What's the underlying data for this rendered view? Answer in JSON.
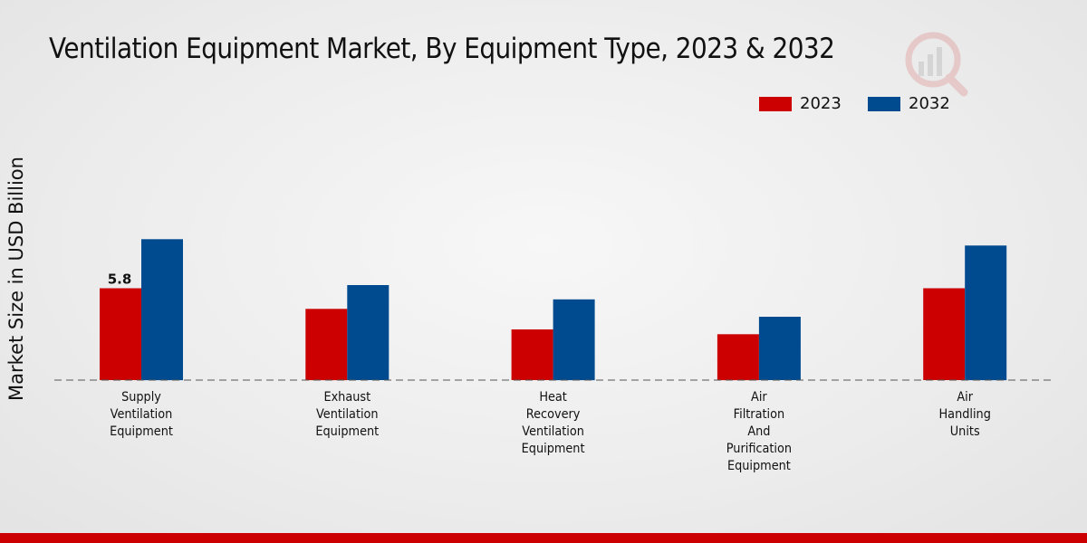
{
  "chart_data": {
    "type": "bar",
    "title": "Ventilation Equipment Market, By Equipment Type, 2023 & 2032",
    "xlabel": "",
    "ylabel": "Market Size in USD Billion",
    "ylim": [
      0,
      16
    ],
    "categories": [
      [
        "Supply",
        "Ventilation",
        "Equipment"
      ],
      [
        "Exhaust",
        "Ventilation",
        "Equipment"
      ],
      [
        "Heat",
        "Recovery",
        "Ventilation",
        "Equipment"
      ],
      [
        "Air",
        "Filtration",
        "And",
        "Purification",
        "Equipment"
      ],
      [
        "Air",
        "Handling",
        "Units"
      ]
    ],
    "series": [
      {
        "name": "2023",
        "color": "#cc0000",
        "values": [
          5.8,
          4.5,
          3.2,
          2.9,
          5.8
        ]
      },
      {
        "name": "2032",
        "color": "#004a8f",
        "values": [
          8.9,
          6.0,
          5.1,
          4.0,
          8.5
        ]
      }
    ],
    "data_labels": [
      {
        "series": 0,
        "index": 0,
        "text": "5.8"
      }
    ],
    "legend_position": "top-right",
    "grid": false
  }
}
